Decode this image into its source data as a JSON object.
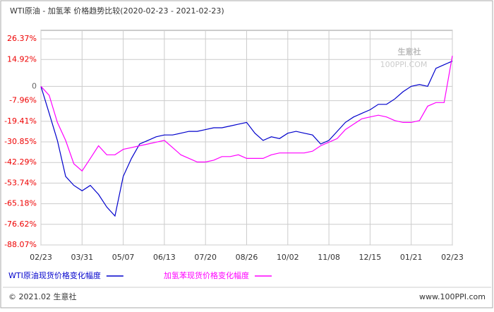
{
  "chart_data": {
    "type": "line",
    "title": "WTI原油 - 加氢苯 价格趋势比较(2020-02-23 - 2021-02-23)",
    "watermark": "生意社",
    "watermark_sub": "100PPI.COM",
    "footer_left": "© 2021.02 生意社",
    "footer_right": "www.100PPI.com",
    "categories": [
      "02/23",
      null,
      null,
      null,
      null,
      "03/31",
      null,
      null,
      null,
      null,
      "05/07",
      null,
      null,
      null,
      null,
      "06/13",
      null,
      null,
      null,
      null,
      "07/20",
      null,
      null,
      null,
      null,
      "08/26",
      null,
      null,
      null,
      null,
      "10/02",
      null,
      null,
      null,
      null,
      "11/08",
      null,
      null,
      null,
      null,
      "12/15",
      null,
      null,
      null,
      null,
      "01/21",
      null,
      null,
      null,
      null,
      "02/23"
    ],
    "series": [
      {
        "name": "WTI原油现货价格变化幅度",
        "color": "#0000cc",
        "values": [
          0,
          -15,
          -30,
          -50,
          -55,
          -58,
          -55,
          -60,
          -67,
          -72,
          -50,
          -40,
          -32,
          -30,
          -28,
          -27,
          -27,
          -26,
          -25,
          -25,
          -24,
          -23,
          -23,
          -22,
          -21,
          -20,
          -26,
          -30,
          -28,
          -29,
          -26,
          -25,
          -26,
          -27,
          -32,
          -30,
          -25,
          -20,
          -17,
          -15,
          -13,
          -10,
          -10,
          -7,
          -3,
          0,
          1,
          0,
          10,
          12,
          14
        ]
      },
      {
        "name": "加氢苯现货价格变化幅度",
        "color": "#ff00ff",
        "values": [
          0,
          -5,
          -20,
          -30,
          -43,
          -47,
          -40,
          -33,
          -38,
          -38,
          -35,
          -34,
          -33,
          -32,
          -31,
          -30,
          -34,
          -38,
          -40,
          -42,
          -42,
          -41,
          -39,
          -39,
          -38,
          -40,
          -40,
          -40,
          -38,
          -37,
          -37,
          -37,
          -37,
          -36,
          -33,
          -31,
          -29,
          -24,
          -21,
          -18,
          -17,
          -16,
          -17,
          -19,
          -20,
          -20,
          -19,
          -11,
          -9,
          -9,
          17
        ]
      }
    ],
    "ylim": [
      -88.07,
      31.1
    ],
    "yticks": [
      {
        "value": 26.37,
        "label": "26.37%"
      },
      {
        "value": 14.92,
        "label": "14.92%"
      },
      0,
      {
        "value": -7.96,
        "label": "-7.96%"
      },
      {
        "value": -19.41,
        "label": "-19.41%"
      },
      {
        "value": -30.85,
        "label": "-30.85%"
      },
      {
        "value": -42.29,
        "label": "-42.29%"
      },
      {
        "value": -53.74,
        "label": "-53.74%"
      },
      {
        "value": -65.18,
        "label": "-65.18%"
      },
      {
        "value": -76.62,
        "label": "-76.62%"
      },
      {
        "value": -88.07,
        "label": "-88.07%"
      }
    ],
    "grid": true
  }
}
